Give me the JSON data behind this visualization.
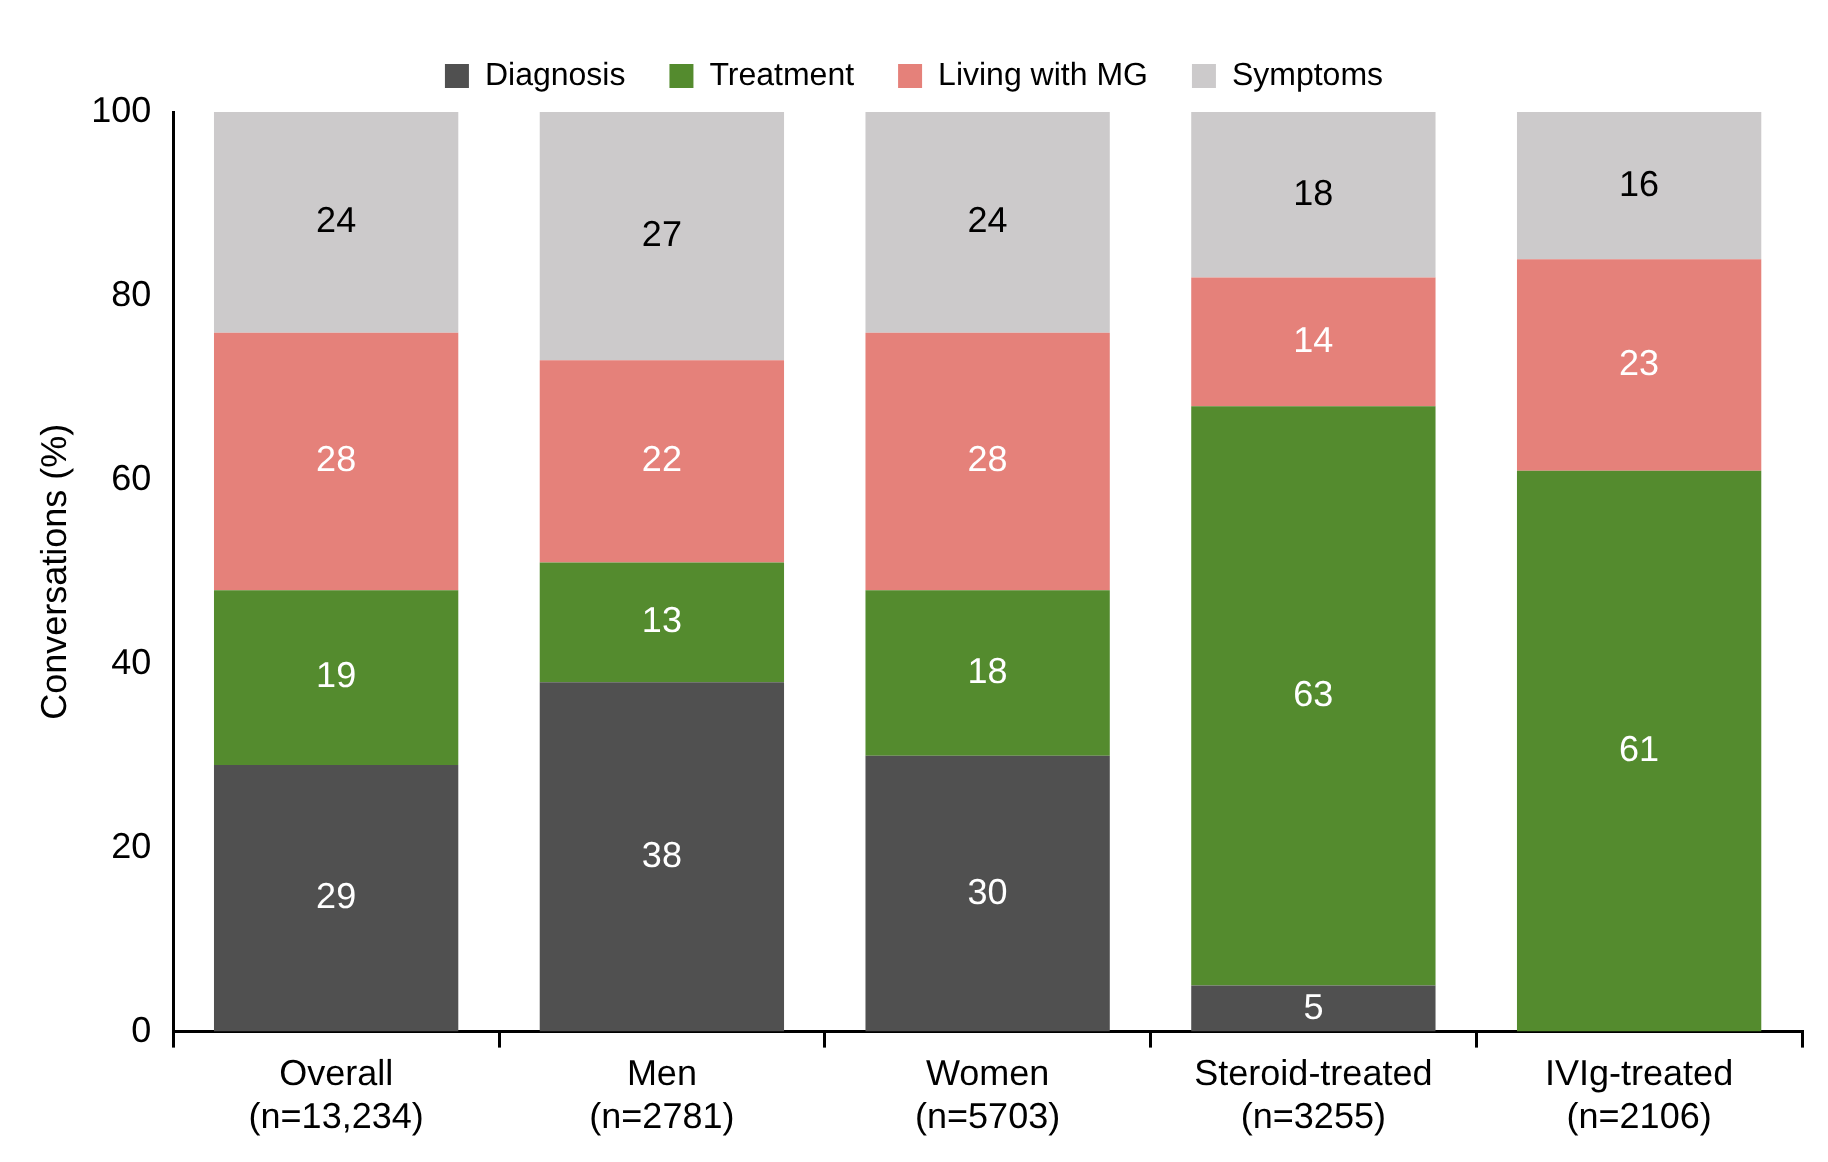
{
  "chart_data": {
    "type": "bar",
    "stacked": true,
    "ylabel": "Conversations (%)",
    "categories": [
      "Overall\n(n=13,234)",
      "Men\n(n=2781)",
      "Women\n(n=5703)",
      "Steroid-treated\n(n=3255)",
      "IVIg-treated\n(n=2106)"
    ],
    "series": [
      {
        "name": "Diagnosis",
        "color": "#505050",
        "values": [
          29,
          38,
          30,
          5,
          null
        ]
      },
      {
        "name": "Treatment",
        "color": "#548b2e",
        "values": [
          19,
          13,
          18,
          63,
          61
        ]
      },
      {
        "name": "Living with MG",
        "color": "#e5817a",
        "values": [
          28,
          22,
          28,
          14,
          23
        ]
      },
      {
        "name": "Symptoms",
        "color": "#cccacb",
        "values": [
          24,
          27,
          24,
          18,
          16
        ]
      }
    ],
    "ylim": [
      0,
      100
    ],
    "yticks": [
      0,
      20,
      40,
      60,
      80,
      100
    ],
    "grid": false,
    "legend": "top",
    "data_labels": true
  }
}
